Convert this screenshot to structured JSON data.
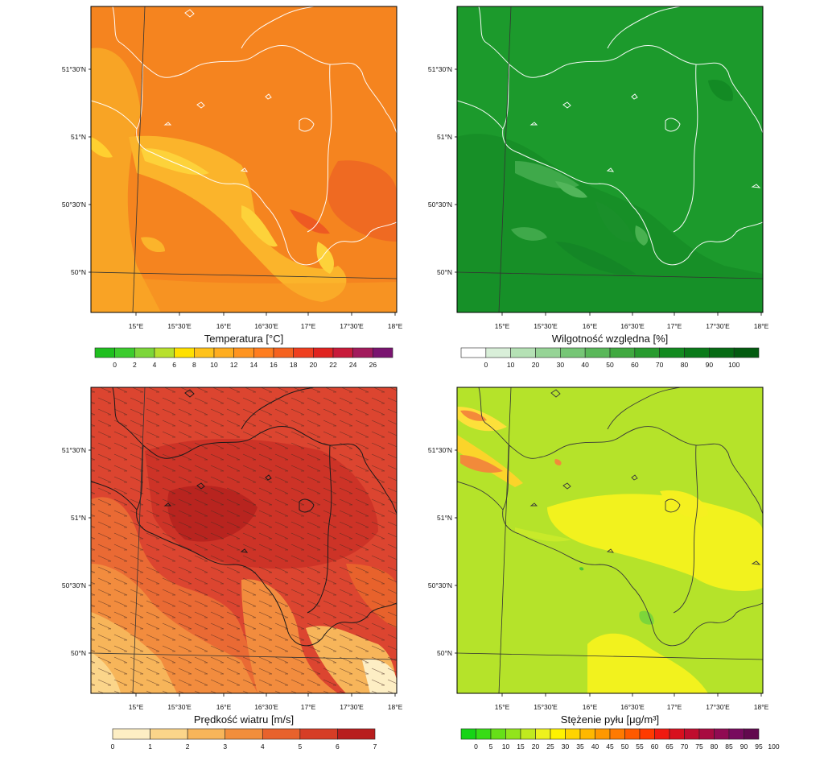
{
  "panels": [
    {
      "id": "temperature",
      "title": "Temperatura [°C]",
      "base_color": "#f5821f",
      "line_color": "#ffffff",
      "colorbar": {
        "colors": [
          "#1fbf1f",
          "#3ccc2e",
          "#7cd63a",
          "#b8e02e",
          "#ffe000",
          "#ffc21a",
          "#ffad1f",
          "#ff9420",
          "#ff7d1f",
          "#f5621f",
          "#ef3f1f",
          "#e0231f",
          "#c81a3a",
          "#a21a5c",
          "#7a1470"
        ],
        "labels": [
          "0",
          "2",
          "4",
          "6",
          "8",
          "10",
          "12",
          "14",
          "16",
          "18",
          "20",
          "22",
          "24",
          "26"
        ]
      }
    },
    {
      "id": "humidity",
      "title": "Wilgotność względna [%]",
      "base_color": "#1e9a2e",
      "line_color": "#ffffff",
      "colorbar": {
        "colors": [
          "#ffffff",
          "#d9efd9",
          "#b5e1b5",
          "#96d496",
          "#76c676",
          "#5ab85a",
          "#40a940",
          "#289b2f",
          "#128a1f",
          "#0a7a19",
          "#066b14",
          "#035b10"
        ],
        "labels": [
          "0",
          "10",
          "20",
          "30",
          "40",
          "50",
          "60",
          "70",
          "80",
          "90",
          "100"
        ]
      }
    },
    {
      "id": "wind",
      "title": "Prędkość wiatru [m/s]",
      "base_color": "#dc4530",
      "line_color": "#222222",
      "colorbar": {
        "colors": [
          "#fdeec4",
          "#fbd58a",
          "#f7b55a",
          "#f28e3c",
          "#e8622c",
          "#d63d26",
          "#b81d1d"
        ],
        "labels": [
          "0",
          "1",
          "2",
          "3",
          "4",
          "5",
          "6",
          "7"
        ]
      }
    },
    {
      "id": "dust",
      "title": "Stężenie pyłu [μg/m³]",
      "base_color": "#b8e62a",
      "line_color": "#444444",
      "colorbar": {
        "colors": [
          "#16d416",
          "#38dc16",
          "#66e018",
          "#92e41c",
          "#c0ea1e",
          "#eef21e",
          "#fff200",
          "#ffd400",
          "#ffb800",
          "#ff9800",
          "#ff7a00",
          "#ff5a00",
          "#ff3a00",
          "#f01a10",
          "#d8101e",
          "#c00c2e",
          "#a80a40",
          "#900a52",
          "#780a5e",
          "#62084e"
        ],
        "labels": [
          "0",
          "5",
          "10",
          "15",
          "20",
          "25",
          "30",
          "35",
          "40",
          "45",
          "50",
          "55",
          "60",
          "65",
          "70",
          "75",
          "80",
          "85",
          "90",
          "95",
          "100"
        ]
      }
    }
  ],
  "axes": {
    "lat_labels": [
      "51°30'N",
      "51°N",
      "50°30'N",
      "50°N"
    ],
    "lon_labels": [
      "15°E",
      "15°30'E",
      "16°E",
      "16°30'E",
      "17°E",
      "17°30'E",
      "18°E"
    ]
  }
}
